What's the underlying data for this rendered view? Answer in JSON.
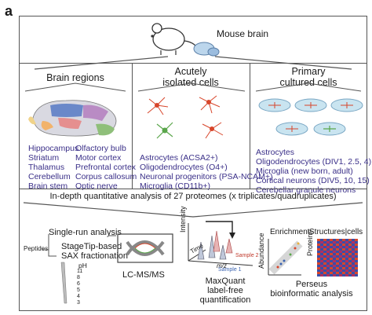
{
  "panel_label": "a",
  "top": {
    "title": "Mouse brain"
  },
  "columns": [
    {
      "title_lines": [
        "Brain regions"
      ],
      "items_left": [
        "Hippocampus",
        "Striatum",
        "Thalamus",
        "Cerebellum",
        "Brain stem"
      ],
      "items_right": [
        "Olfactory bulb",
        "Motor cortex",
        "Prefrontal cortex",
        "Corpus callosum",
        "Optic nerve"
      ]
    },
    {
      "title_lines": [
        "Acutely",
        "isolated cells"
      ],
      "items": [
        "Astrocytes (ACSA2+)",
        "Oligodendrocytes (O4+)",
        "Neuronal progenitors (PSA-NCAM+)",
        "Microglia (CD11b+)"
      ]
    },
    {
      "title_lines": [
        "Primary",
        "cultured cells"
      ],
      "items": [
        "Astrocytes",
        "Oligodendrocytes (DIV1, 2.5, 4)",
        "Microglia (new born, adult)",
        "Cortical neurons (DIV5, 10, 15)",
        "Cerebellar granule neurons"
      ]
    }
  ],
  "analysis_banner": "In-depth quantitative analysis of 27 proteomes (x triplicates/quadruplicates)",
  "workflow": {
    "peptides": "Peptides",
    "single_run": "Single-run analysis",
    "stagetip": [
      "StageTip-based",
      "SAX fractionation"
    ],
    "ph_label": "pH",
    "ph_values": [
      "11",
      "8",
      "6",
      "5",
      "4",
      "3"
    ],
    "lcms": "LC-MS/MS",
    "intensity": "Intensity",
    "time": "Time",
    "mz": "m/z",
    "sample1": "Sample 1",
    "sample2": "Sample 2",
    "maxquant": [
      "MaxQuant",
      "label-free quantification"
    ],
    "enrichment": "Enrichment",
    "abundance": "Abundance",
    "structures": "Structures|cells",
    "proteins": "Proteins",
    "perseus": [
      "Perseus",
      "bioinformatic analysis"
    ]
  },
  "colors": {
    "purple_text": "#3a2f88",
    "brain_gray": "#d9d9e1",
    "neuron_red": "#d8452a",
    "astro_green": "#5aa64b",
    "dish_blue": "#c9e4f0"
  }
}
